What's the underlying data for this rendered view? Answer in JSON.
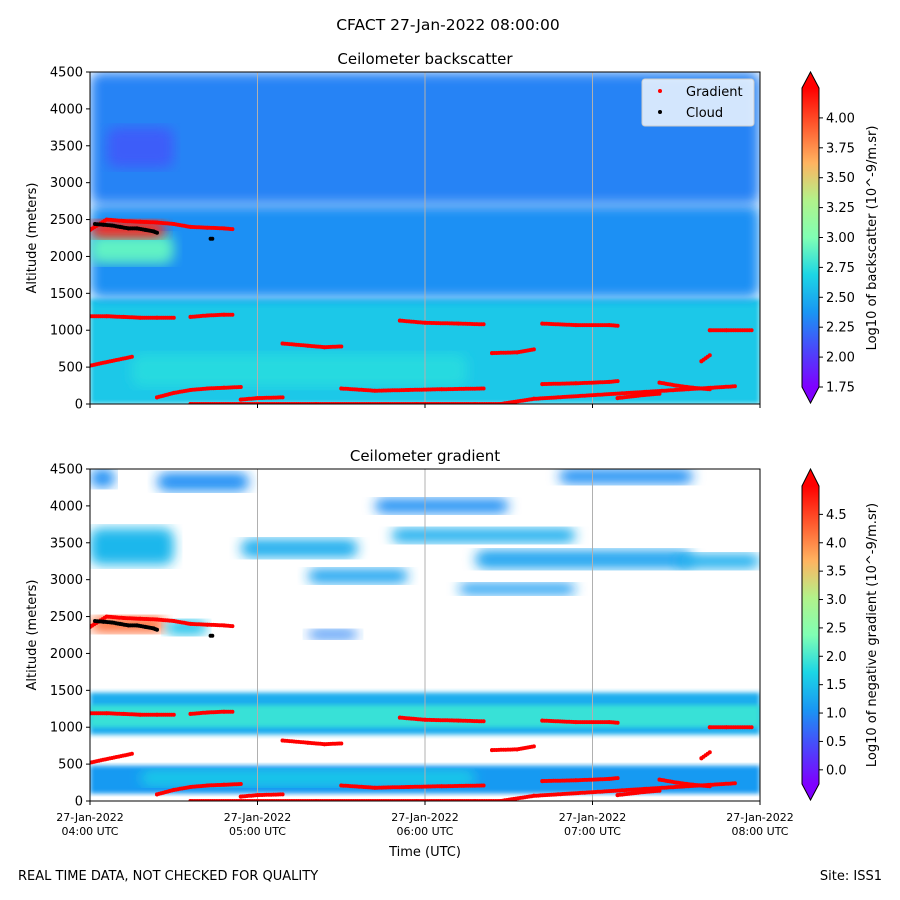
{
  "page": {
    "suptitle": "CFACT 27-Jan-2022 08:00:00",
    "footer_left": "REAL TIME DATA, NOT CHECKED FOR QUALITY",
    "footer_right": "Site: ISS1",
    "colors": {
      "gradient_marker": "#ff0000",
      "cloud_marker": "#000000",
      "gridline": "#b0b0b0"
    }
  },
  "chart_data": [
    {
      "type": "heatmap",
      "title": "Ceilometer backscatter",
      "ylabel": "Altitude (meters)",
      "xlabel": "",
      "xlim": [
        4.0,
        8.0
      ],
      "ylim": [
        0,
        4500
      ],
      "x_ticks": [
        4,
        5,
        6,
        7,
        8
      ],
      "x_tick_labels": [
        [
          "27-Jan-2022",
          "04:00 UTC"
        ],
        [
          "27-Jan-2022",
          "05:00 UTC"
        ],
        [
          "27-Jan-2022",
          "06:00 UTC"
        ],
        [
          "27-Jan-2022",
          "07:00 UTC"
        ],
        [
          "27-Jan-2022",
          "08:00 UTC"
        ]
      ],
      "show_x_tick_labels": false,
      "y_ticks": [
        0,
        500,
        1000,
        1500,
        2000,
        2500,
        3000,
        3500,
        4000,
        4500
      ],
      "colorbar": {
        "label": "Log10 of backscatter (10^-9/m.sr)",
        "range": [
          1.75,
          4.25
        ],
        "ticks": [
          1.75,
          2.0,
          2.25,
          2.5,
          2.75,
          3.0,
          3.25,
          3.5,
          3.75,
          4.0
        ],
        "tick_labels": [
          "1.75",
          "2.00",
          "2.25",
          "2.50",
          "2.75",
          "3.00",
          "3.25",
          "3.50",
          "3.75",
          "4.00"
        ],
        "extend": "both"
      },
      "legend": {
        "position": "top-right",
        "entries": [
          "Gradient",
          "Cloud"
        ]
      },
      "field_layers": [
        {
          "value": 2.62,
          "t0": 4.0,
          "t1": 8.0,
          "alt0": 0,
          "alt1": 1430
        },
        {
          "value": 2.35,
          "t0": 4.0,
          "t1": 8.0,
          "alt0": 1430,
          "alt1": 2700
        },
        {
          "value": 2.3,
          "t0": 4.0,
          "t1": 8.0,
          "alt0": 2700,
          "alt1": 4500
        },
        {
          "value": 2.15,
          "t0": 4.1,
          "t1": 4.5,
          "alt0": 3200,
          "alt1": 3750
        },
        {
          "value": 2.72,
          "t0": 4.25,
          "t1": 6.25,
          "alt0": 230,
          "alt1": 680
        },
        {
          "value": 2.9,
          "t0": 4.0,
          "t1": 4.5,
          "alt0": 1900,
          "alt1": 2300
        },
        {
          "value": 4.1,
          "t0": 4.0,
          "t1": 4.45,
          "alt0": 2250,
          "alt1": 2490
        }
      ],
      "gradient_series": [
        {
          "t": [
            4.0,
            4.1,
            4.2,
            4.3,
            4.4,
            4.5,
            4.6,
            4.7,
            4.8,
            4.85
          ],
          "alt": [
            2360,
            2500,
            2480,
            2470,
            2460,
            2440,
            2400,
            2390,
            2380,
            2370
          ]
        },
        {
          "t": [
            4.0,
            4.1,
            4.2,
            4.3,
            4.4,
            4.5
          ],
          "alt": [
            1190,
            1190,
            1180,
            1170,
            1170,
            1170
          ]
        },
        {
          "t": [
            4.6,
            4.7,
            4.8,
            4.85
          ],
          "alt": [
            1180,
            1200,
            1210,
            1210
          ]
        },
        {
          "t": [
            4.4,
            4.5,
            4.6,
            4.7,
            4.8,
            4.9
          ],
          "alt": [
            90,
            150,
            190,
            210,
            220,
            230
          ]
        },
        {
          "t": [
            4.9,
            5.0,
            5.15
          ],
          "alt": [
            60,
            80,
            90
          ]
        },
        {
          "t": [
            5.15,
            5.3,
            5.4,
            5.5
          ],
          "alt": [
            820,
            790,
            770,
            780
          ]
        },
        {
          "t": [
            5.5,
            5.7,
            5.9,
            6.1,
            6.35
          ],
          "alt": [
            210,
            180,
            190,
            200,
            210
          ]
        },
        {
          "t": [
            5.85,
            6.0,
            6.2,
            6.35
          ],
          "alt": [
            1130,
            1100,
            1090,
            1080
          ]
        },
        {
          "t": [
            6.4,
            6.55,
            6.65
          ],
          "alt": [
            690,
            700,
            740
          ]
        },
        {
          "t": [
            6.7,
            6.9,
            7.1,
            7.15
          ],
          "alt": [
            270,
            280,
            300,
            310
          ]
        },
        {
          "t": [
            6.7,
            6.9,
            7.1,
            7.15
          ],
          "alt": [
            1090,
            1070,
            1070,
            1060
          ]
        },
        {
          "t": [
            7.15,
            7.3,
            7.4
          ],
          "alt": [
            80,
            120,
            140
          ]
        },
        {
          "t": [
            7.4,
            7.5,
            7.6,
            7.7
          ],
          "alt": [
            290,
            250,
            220,
            200
          ]
        },
        {
          "t": [
            7.65,
            7.7
          ],
          "alt": [
            580,
            660
          ]
        },
        {
          "t": [
            7.7,
            7.8,
            7.95
          ],
          "alt": [
            1000,
            1000,
            1000
          ]
        },
        {
          "t": [
            4.0,
            4.25,
            4.6,
            5.35,
            5.95,
            6.3,
            6.45,
            6.65,
            7.85
          ],
          "alt": [
            520,
            640,
            0,
            0,
            0,
            0,
            0,
            70,
            240
          ]
        }
      ],
      "cloud_series": [
        {
          "t": [
            4.03,
            4.08,
            4.13,
            4.18,
            4.23,
            4.28,
            4.33,
            4.38,
            4.4
          ],
          "alt": [
            2440,
            2430,
            2420,
            2400,
            2380,
            2380,
            2360,
            2340,
            2320
          ]
        },
        {
          "t": [
            4.72,
            4.73
          ],
          "alt": [
            2240,
            2240
          ]
        }
      ]
    },
    {
      "type": "heatmap",
      "title": "Ceilometer gradient",
      "ylabel": "Altitude (meters)",
      "xlabel": "Time (UTC)",
      "xlim": [
        4.0,
        8.0
      ],
      "ylim": [
        0,
        4500
      ],
      "x_ticks": [
        4,
        5,
        6,
        7,
        8
      ],
      "x_tick_labels": [
        [
          "27-Jan-2022",
          "04:00 UTC"
        ],
        [
          "27-Jan-2022",
          "05:00 UTC"
        ],
        [
          "27-Jan-2022",
          "06:00 UTC"
        ],
        [
          "27-Jan-2022",
          "07:00 UTC"
        ],
        [
          "27-Jan-2022",
          "08:00 UTC"
        ]
      ],
      "show_x_tick_labels": true,
      "y_ticks": [
        0,
        500,
        1000,
        1500,
        2000,
        2500,
        3000,
        3500,
        4000,
        4500
      ],
      "colorbar": {
        "label": "Log10 of negative gradient (10^-9/m.sr)",
        "range": [
          -0.25,
          5.0
        ],
        "ticks": [
          0.0,
          0.5,
          1.0,
          1.5,
          2.0,
          2.5,
          3.0,
          3.5,
          4.0,
          4.5
        ],
        "tick_labels": [
          "0.0",
          "0.5",
          "1.0",
          "1.5",
          "2.0",
          "2.5",
          "3.0",
          "3.5",
          "4.0",
          "4.5"
        ],
        "extend": "both"
      },
      "legend": null,
      "field_layers": [
        {
          "value": 1.3,
          "t0": 4.0,
          "t1": 8.0,
          "alt0": 900,
          "alt1": 1470
        },
        {
          "value": 1.9,
          "t0": 4.0,
          "t1": 8.0,
          "alt0": 1000,
          "alt1": 1300
        },
        {
          "value": 1.1,
          "t0": 4.0,
          "t1": 8.0,
          "alt0": 100,
          "alt1": 480
        },
        {
          "value": 1.6,
          "t0": 4.3,
          "t1": 6.3,
          "alt0": 200,
          "alt1": 420
        },
        {
          "value": 1.4,
          "t0": 4.0,
          "t1": 4.5,
          "alt0": 3200,
          "alt1": 3700
        },
        {
          "value": 1.3,
          "t0": 4.9,
          "t1": 5.6,
          "alt0": 3300,
          "alt1": 3550
        },
        {
          "value": 1.3,
          "t0": 5.8,
          "t1": 6.9,
          "alt0": 3500,
          "alt1": 3700
        },
        {
          "value": 1.2,
          "t0": 6.3,
          "t1": 7.6,
          "alt0": 3150,
          "alt1": 3400
        },
        {
          "value": 1.2,
          "t0": 5.3,
          "t1": 5.9,
          "alt0": 2950,
          "alt1": 3150
        },
        {
          "value": 1.1,
          "t0": 6.2,
          "t1": 6.9,
          "alt0": 2800,
          "alt1": 2950
        },
        {
          "value": 1.3,
          "t0": 7.5,
          "t1": 8.0,
          "alt0": 3150,
          "alt1": 3350
        },
        {
          "value": 1.0,
          "t0": 4.0,
          "t1": 4.15,
          "alt0": 4250,
          "alt1": 4500
        },
        {
          "value": 1.0,
          "t0": 4.4,
          "t1": 4.95,
          "alt0": 4200,
          "alt1": 4450
        },
        {
          "value": 1.0,
          "t0": 5.7,
          "t1": 6.5,
          "alt0": 3900,
          "alt1": 4100
        },
        {
          "value": 1.0,
          "t0": 6.8,
          "t1": 7.6,
          "alt0": 4300,
          "alt1": 4500
        },
        {
          "value": 0.9,
          "t0": 5.3,
          "t1": 5.6,
          "alt0": 2200,
          "alt1": 2320
        },
        {
          "value": 4.2,
          "t0": 4.0,
          "t1": 4.45,
          "alt0": 2280,
          "alt1": 2500
        },
        {
          "value": 1.5,
          "t0": 4.45,
          "t1": 4.7,
          "alt0": 2250,
          "alt1": 2450
        }
      ],
      "gradient_series": [
        {
          "t": [
            4.0,
            4.1,
            4.2,
            4.3,
            4.4,
            4.5,
            4.6,
            4.7,
            4.8,
            4.85
          ],
          "alt": [
            2360,
            2500,
            2480,
            2470,
            2460,
            2440,
            2400,
            2390,
            2380,
            2370
          ]
        },
        {
          "t": [
            4.0,
            4.1,
            4.2,
            4.3,
            4.4,
            4.5
          ],
          "alt": [
            1190,
            1190,
            1180,
            1170,
            1170,
            1170
          ]
        },
        {
          "t": [
            4.6,
            4.7,
            4.8,
            4.85
          ],
          "alt": [
            1180,
            1200,
            1210,
            1210
          ]
        },
        {
          "t": [
            4.4,
            4.5,
            4.6,
            4.7,
            4.8,
            4.9
          ],
          "alt": [
            90,
            150,
            190,
            210,
            220,
            230
          ]
        },
        {
          "t": [
            4.9,
            5.0,
            5.15
          ],
          "alt": [
            60,
            80,
            90
          ]
        },
        {
          "t": [
            5.15,
            5.3,
            5.4,
            5.5
          ],
          "alt": [
            820,
            790,
            770,
            780
          ]
        },
        {
          "t": [
            5.5,
            5.7,
            5.9,
            6.1,
            6.35
          ],
          "alt": [
            210,
            180,
            190,
            200,
            210
          ]
        },
        {
          "t": [
            5.85,
            6.0,
            6.2,
            6.35
          ],
          "alt": [
            1130,
            1100,
            1090,
            1080
          ]
        },
        {
          "t": [
            6.4,
            6.55,
            6.65
          ],
          "alt": [
            690,
            700,
            740
          ]
        },
        {
          "t": [
            6.7,
            6.9,
            7.1,
            7.15
          ],
          "alt": [
            270,
            280,
            300,
            310
          ]
        },
        {
          "t": [
            6.7,
            6.9,
            7.1,
            7.15
          ],
          "alt": [
            1090,
            1070,
            1070,
            1060
          ]
        },
        {
          "t": [
            7.15,
            7.3,
            7.4
          ],
          "alt": [
            80,
            120,
            140
          ]
        },
        {
          "t": [
            7.4,
            7.5,
            7.6,
            7.7
          ],
          "alt": [
            290,
            250,
            220,
            200
          ]
        },
        {
          "t": [
            7.65,
            7.7
          ],
          "alt": [
            580,
            660
          ]
        },
        {
          "t": [
            7.7,
            7.8,
            7.95
          ],
          "alt": [
            1000,
            1000,
            1000
          ]
        },
        {
          "t": [
            4.0,
            4.25,
            4.6,
            5.35,
            5.95,
            6.3,
            6.45,
            6.65,
            7.85
          ],
          "alt": [
            520,
            640,
            0,
            0,
            0,
            0,
            0,
            70,
            240
          ]
        }
      ],
      "cloud_series": [
        {
          "t": [
            4.03,
            4.08,
            4.13,
            4.18,
            4.23,
            4.28,
            4.33,
            4.38,
            4.4
          ],
          "alt": [
            2440,
            2430,
            2420,
            2400,
            2380,
            2380,
            2360,
            2340,
            2320
          ]
        },
        {
          "t": [
            4.72,
            4.73
          ],
          "alt": [
            2240,
            2240
          ]
        }
      ]
    }
  ]
}
